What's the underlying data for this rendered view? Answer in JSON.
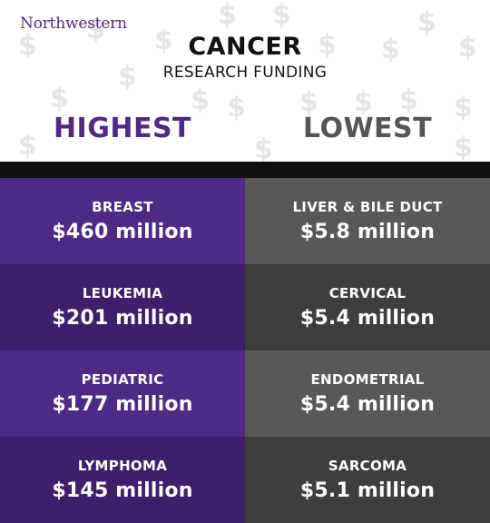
{
  "logo": "Northwestern",
  "title": "CANCER",
  "subtitle": "RESEARCH FUNDING",
  "columns": {
    "highest": "HIGHEST",
    "lowest": "LOWEST"
  },
  "highest": [
    {
      "name": "BREAST",
      "amount": "$460 million"
    },
    {
      "name": "LEUKEMIA",
      "amount": "$201 million"
    },
    {
      "name": "PEDIATRIC",
      "amount": "$177 million"
    },
    {
      "name": "LYMPHOMA",
      "amount": "$145 million"
    }
  ],
  "lowest": [
    {
      "name": "LIVER & BILE DUCT",
      "amount": "$5.8 million"
    },
    {
      "name": "CERVICAL",
      "amount": "$5.4 million"
    },
    {
      "name": "ENDOMETRIAL",
      "amount": "$5.4 million"
    },
    {
      "name": "SARCOMA",
      "amount": "$5.1 million"
    }
  ],
  "colors": {
    "purple_dark": "#3d1f6b",
    "purple_light": "#4e2a84",
    "gray_dark": "#3e3e3e",
    "gray_light": "#585858"
  },
  "background_icon": "dollar-sign-icon"
}
